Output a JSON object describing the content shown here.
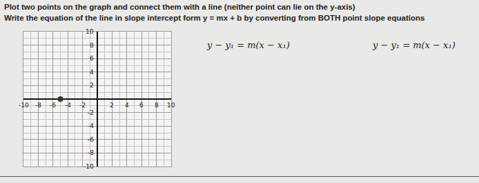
{
  "instructions": [
    "Plot two points on the graph and connect them with a line (neither point can lie on the y-axis)",
    "Write the equation of the line in slope intercept form y = mx + b by converting from BOTH point slope equations"
  ],
  "equations": [
    "y − y₁ = m(x − x₁)",
    "y − y₁ = m(x − x₁)"
  ],
  "chart_data": {
    "type": "scatter",
    "x": [
      -5
    ],
    "values": [
      0
    ],
    "color": "#333333",
    "marker": "circle",
    "xlim": [
      -10,
      10
    ],
    "ylim": [
      -10,
      10
    ],
    "xticks": [
      -10,
      -8,
      -6,
      -4,
      -2,
      2,
      4,
      6,
      8,
      10
    ],
    "yticks": [
      -10,
      -8,
      -6,
      -4,
      -2,
      2,
      4,
      6,
      8,
      10
    ],
    "grid": true
  }
}
